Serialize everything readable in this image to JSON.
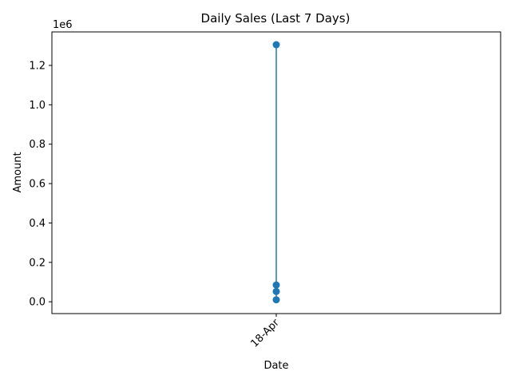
{
  "chart_data": {
    "type": "line",
    "title": "Daily Sales (Last 7 Days)",
    "xlabel": "Date",
    "ylabel": "Amount",
    "y_offset_text": "1e6",
    "x_categories": [
      "18-Apr"
    ],
    "series": [
      {
        "color": "#1f77b4",
        "marker": "circle",
        "points": [
          {
            "x": "18-Apr",
            "y": 10000
          },
          {
            "x": "18-Apr",
            "y": 52000
          },
          {
            "x": "18-Apr",
            "y": 85000
          },
          {
            "x": "18-Apr",
            "y": 1305000
          }
        ]
      }
    ],
    "ylim": [
      -60000,
      1370000
    ],
    "y_ticks": [
      0,
      200000,
      400000,
      600000,
      800000,
      1000000,
      1200000
    ],
    "y_tick_labels": [
      "0.0",
      "0.2",
      "0.4",
      "0.6",
      "0.8",
      "1.0",
      "1.2"
    ],
    "x_tick_rotation_deg": 45,
    "grid": false,
    "legend": "none"
  }
}
